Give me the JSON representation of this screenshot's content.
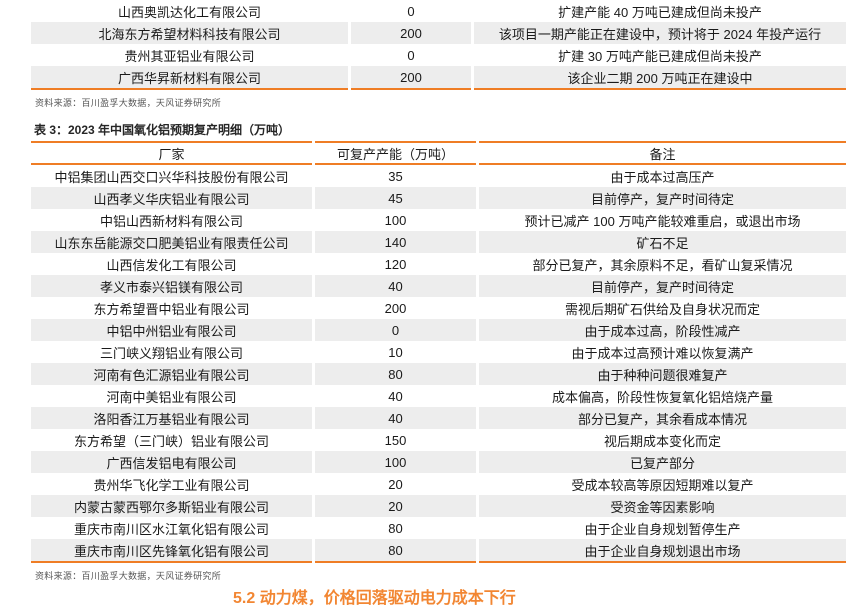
{
  "theme": {
    "accent_orange": "#EF7D25",
    "heading_orange": "#F28632",
    "row_alt_bg": "#EDEDED",
    "body_text": "#1A1A1A",
    "source_text": "#575757"
  },
  "top_table": {
    "rows": [
      {
        "company": "山西奥凯达化工有限公司",
        "capacity": "0",
        "note": "扩建产能 40 万吨已建成但尚未投产"
      },
      {
        "company": "北海东方希望材料科技有限公司",
        "capacity": "200",
        "note": "该项目一期产能正在建设中，预计将于 2024 年投产运行"
      },
      {
        "company": "贵州其亚铝业有限公司",
        "capacity": "0",
        "note": "扩建 30 万吨产能已建成但尚未投产"
      },
      {
        "company": "广西华昇新材料有限公司",
        "capacity": "200",
        "note": "该企业二期 200 万吨正在建设中"
      }
    ],
    "source": "资料来源：百川盈孚大数据，天风证券研究所"
  },
  "table3": {
    "title": "表 3：2023 年中国氧化铝预期复产明细（万吨）",
    "headers": [
      "厂家",
      "可复产产能（万吨）",
      "备注"
    ],
    "rows": [
      {
        "company": "中铝集团山西交口兴华科技股份有限公司",
        "capacity": "35",
        "note": "由于成本过高压产"
      },
      {
        "company": "山西孝义华庆铝业有限公司",
        "capacity": "45",
        "note": "目前停产，复产时间待定"
      },
      {
        "company": "中铝山西新材料有限公司",
        "capacity": "100",
        "note": "预计已减产 100 万吨产能较难重启，或退出市场"
      },
      {
        "company": "山东东岳能源交口肥美铝业有限责任公司",
        "capacity": "140",
        "note": "矿石不足"
      },
      {
        "company": "山西信发化工有限公司",
        "capacity": "120",
        "note": "部分已复产，其余原料不足，看矿山复采情况"
      },
      {
        "company": "孝义市泰兴铝镁有限公司",
        "capacity": "40",
        "note": "目前停产，复产时间待定"
      },
      {
        "company": "东方希望晋中铝业有限公司",
        "capacity": "200",
        "note": "需视后期矿石供给及自身状况而定"
      },
      {
        "company": "中铝中州铝业有限公司",
        "capacity": "0",
        "note": "由于成本过高，阶段性减产"
      },
      {
        "company": "三门峡义翔铝业有限公司",
        "capacity": "10",
        "note": "由于成本过高预计难以恢复满产"
      },
      {
        "company": "河南有色汇源铝业有限公司",
        "capacity": "80",
        "note": "由于种种问题很难复产"
      },
      {
        "company": "河南中美铝业有限公司",
        "capacity": "40",
        "note": "成本偏高，阶段性恢复氧化铝焙烧产量"
      },
      {
        "company": "洛阳香江万基铝业有限公司",
        "capacity": "40",
        "note": "部分已复产，其余看成本情况"
      },
      {
        "company": "东方希望（三门峡）铝业有限公司",
        "capacity": "150",
        "note": "视后期成本变化而定"
      },
      {
        "company": "广西信发铝电有限公司",
        "capacity": "100",
        "note": "已复产部分"
      },
      {
        "company": "贵州华飞化学工业有限公司",
        "capacity": "20",
        "note": "受成本较高等原因短期难以复产"
      },
      {
        "company": "内蒙古蒙西鄂尔多斯铝业有限公司",
        "capacity": "20",
        "note": "受资金等因素影响"
      },
      {
        "company": "重庆市南川区水江氧化铝有限公司",
        "capacity": "80",
        "note": "由于企业自身规划暂停生产"
      },
      {
        "company": "重庆市南川区先锋氧化铝有限公司",
        "capacity": "80",
        "note": "由于企业自身规划退出市场"
      }
    ],
    "source": "资料来源：百川盈孚大数据，天风证券研究所"
  },
  "section_heading": "5.2 动力煤，价格回落驱动电力成本下行"
}
